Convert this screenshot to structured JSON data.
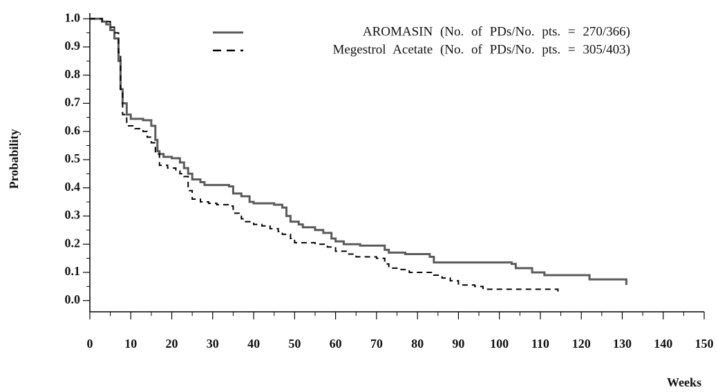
{
  "chart_data": {
    "type": "step",
    "xlabel": "Weeks",
    "ylabel": "Probability",
    "xlim": [
      0,
      150
    ],
    "ylim": [
      -0.04,
      1.02
    ],
    "xticks": [
      0,
      10,
      20,
      30,
      40,
      50,
      60,
      70,
      80,
      90,
      100,
      110,
      120,
      130,
      140,
      150
    ],
    "xminorticks": [
      5,
      15,
      25,
      35,
      45,
      55,
      65,
      75,
      85,
      95,
      105,
      115,
      125,
      135,
      145
    ],
    "yticks": [
      {
        "value": 0,
        "label": "0.0"
      },
      0.1,
      0.2,
      0.3,
      0.4,
      0.5,
      0.6,
      0.7,
      0.8,
      0.9,
      {
        "value": 1,
        "label": "1.0"
      }
    ],
    "yminorticks": [
      0.05,
      0.15,
      0.25,
      0.35,
      0.45,
      0.55,
      0.65,
      0.75,
      0.85,
      0.95
    ],
    "legend": "top-right",
    "series": [
      {
        "name": "AROMASIN (No. of PDs/No. pts. = 270/366)",
        "color": "#5a5a5a",
        "dash": false,
        "x": [
          0,
          2,
          3,
          4,
          5,
          6,
          7,
          7.5,
          8,
          9,
          10,
          13,
          15,
          16,
          16.5,
          17,
          18,
          20,
          22,
          23,
          24,
          25,
          27,
          28,
          34,
          35,
          37,
          39,
          40,
          45,
          47,
          48,
          49,
          51,
          52,
          55,
          57,
          59,
          60,
          62,
          66,
          72,
          73,
          77,
          83,
          84,
          103,
          104,
          108,
          111,
          122,
          131
        ],
        "values": [
          1,
          1,
          0.99,
          0.98,
          0.96,
          0.93,
          0.85,
          0.75,
          0.7,
          0.66,
          0.645,
          0.64,
          0.62,
          0.57,
          0.53,
          0.52,
          0.51,
          0.505,
          0.49,
          0.47,
          0.45,
          0.43,
          0.42,
          0.41,
          0.405,
          0.38,
          0.37,
          0.35,
          0.345,
          0.34,
          0.33,
          0.3,
          0.28,
          0.27,
          0.26,
          0.25,
          0.24,
          0.22,
          0.21,
          0.2,
          0.195,
          0.18,
          0.17,
          0.165,
          0.155,
          0.135,
          0.13,
          0.115,
          0.1,
          0.09,
          0.075,
          0.055
        ]
      },
      {
        "name": "Megestrol Acetate (No. of PDs/No. pts. = 305/403)",
        "color": "#000000",
        "dash": true,
        "x": [
          0,
          3,
          5,
          6,
          7,
          7.5,
          8,
          9,
          11,
          13,
          14,
          15,
          16,
          17,
          19,
          21,
          22,
          23,
          24,
          25,
          27,
          29,
          31,
          34,
          35,
          37,
          38,
          40,
          42,
          44,
          46,
          47,
          49,
          50,
          55,
          58,
          60,
          63,
          65,
          70,
          72,
          73,
          76,
          78,
          84,
          86,
          88,
          90,
          94,
          96,
          114,
          114.3
        ],
        "values": [
          1,
          0.99,
          0.97,
          0.95,
          0.88,
          0.75,
          0.66,
          0.62,
          0.61,
          0.6,
          0.58,
          0.56,
          0.52,
          0.48,
          0.47,
          0.46,
          0.45,
          0.44,
          0.39,
          0.36,
          0.35,
          0.345,
          0.34,
          0.335,
          0.31,
          0.29,
          0.28,
          0.27,
          0.265,
          0.255,
          0.245,
          0.235,
          0.22,
          0.205,
          0.2,
          0.19,
          0.175,
          0.165,
          0.155,
          0.15,
          0.13,
          0.115,
          0.11,
          0.1,
          0.09,
          0.08,
          0.07,
          0.055,
          0.05,
          0.04,
          0.04,
          0.025
        ]
      }
    ]
  }
}
